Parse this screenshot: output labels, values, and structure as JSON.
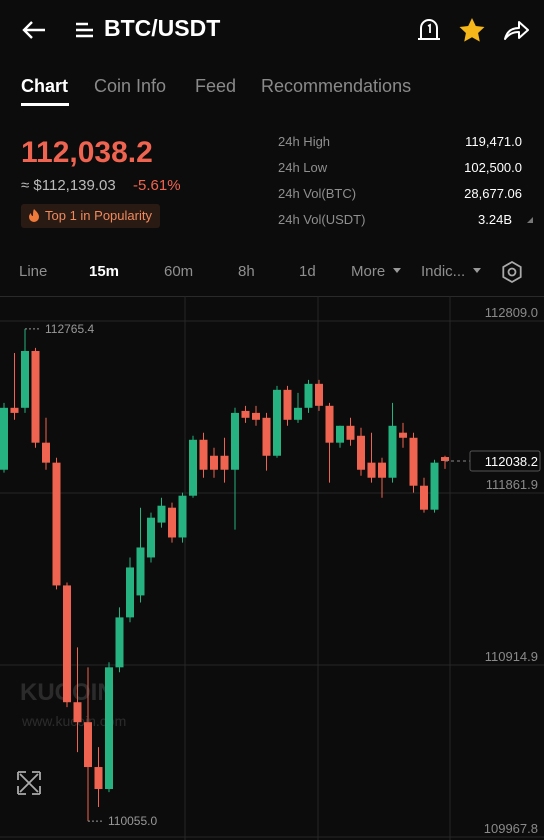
{
  "header": {
    "title": "BTC/USDT"
  },
  "tabs": [
    "Chart",
    "Coin Info",
    "Feed",
    "Recommendations"
  ],
  "price": {
    "last": "112,038.2",
    "fiat": "≈ $112,139.03",
    "change": "-5.61%",
    "badge": "Top 1 in Popularity"
  },
  "stats": [
    {
      "label": "24h High",
      "value": "119,471.0"
    },
    {
      "label": "24h Low",
      "value": "102,500.0"
    },
    {
      "label": "24h Vol(BTC)",
      "value": "28,677.06"
    },
    {
      "label": "24h Vol(USDT)",
      "value": "3.24B"
    }
  ],
  "intervals": [
    "Line",
    "15m",
    "60m",
    "8h",
    "1d",
    "More",
    "Indic..."
  ],
  "chart_data": {
    "type": "candlestick",
    "up_color": "#26b281",
    "down_color": "#ef6450",
    "open": [
      111990,
      112331,
      112331,
      112644,
      112139,
      112029,
      111353,
      110710,
      110600,
      110353,
      110232,
      110902,
      111177,
      111298,
      111507,
      111699,
      111781,
      111617,
      111847,
      112155,
      112067,
      112067,
      111990,
      112314,
      112303,
      112276,
      112067,
      112430,
      112265,
      112331,
      112463,
      112342,
      112139,
      112232,
      112177,
      112029,
      112029,
      111946,
      112194,
      112166,
      111902,
      111770,
      112060
    ],
    "high": [
      112358,
      112633,
      112765.4,
      112661,
      112276,
      112056,
      111369,
      111012,
      110902,
      110463,
      110930,
      111232,
      111507,
      111781,
      111754,
      111836,
      111809,
      111864,
      112177,
      112194,
      112111,
      112166,
      112331,
      112342,
      112342,
      112303,
      112452,
      112452,
      112413,
      112485,
      112485,
      112358,
      112232,
      112276,
      112221,
      112194,
      112056,
      112358,
      112248,
      112194,
      111946,
      112045,
      112067
    ],
    "low": [
      111974,
      112265,
      112303,
      112111,
      111990,
      111331,
      110683,
      110435,
      110055,
      110133,
      110215,
      110875,
      111150,
      111259,
      111479,
      111671,
      111589,
      111589,
      111836,
      111946,
      111946,
      111919,
      111660,
      112248,
      112232,
      111985,
      112056,
      112232,
      112248,
      112303,
      112314,
      111919,
      112111,
      112122,
      111957,
      111919,
      111836,
      111919,
      112111,
      111864,
      111754,
      111754,
      111995
    ],
    "close": [
      112331,
      112303,
      112644,
      112139,
      112029,
      111353,
      110710,
      110600,
      110353,
      110232,
      110902,
      111177,
      111452,
      111562,
      111726,
      111792,
      111617,
      111847,
      112155,
      111990,
      111990,
      111990,
      112303,
      112276,
      112265,
      112067,
      112430,
      112265,
      112331,
      112463,
      112342,
      112139,
      112232,
      112155,
      111990,
      111946,
      111946,
      112232,
      112166,
      111902,
      111770,
      112029,
      112038.2
    ],
    "ylim": [
      109967.8,
      112809
    ],
    "yticks": [
      {
        "value": 112809,
        "label": "112809.0"
      },
      {
        "value": 111861.9,
        "label": "111861.9"
      },
      {
        "value": 110914.9,
        "label": "110914.9"
      },
      {
        "value": 109967.8,
        "label": "109967.8"
      }
    ],
    "grid": true,
    "high_label": "112765.4",
    "low_label": "110055.0",
    "last_label": "112038.2",
    "watermark": "KUCOIN",
    "watermark_url": "www.kucoin.com"
  }
}
